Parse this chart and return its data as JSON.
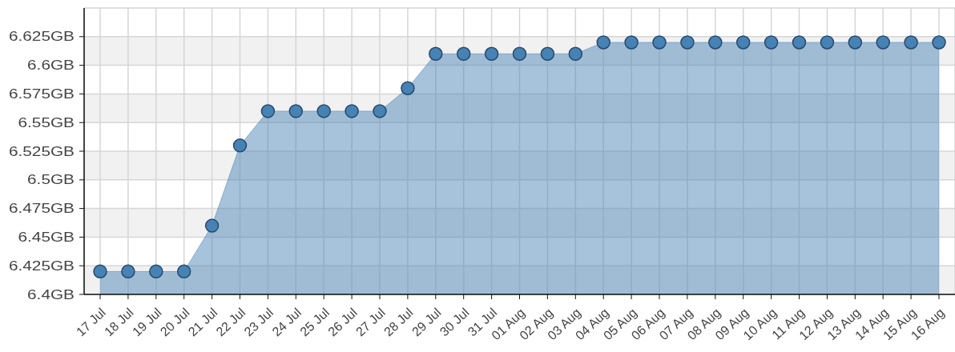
{
  "chart_data": {
    "type": "area",
    "categories": [
      "17 Jul",
      "18 Jul",
      "19 Jul",
      "20 Jul",
      "21 Jul",
      "22 Jul",
      "23 Jul",
      "24 Jul",
      "25 Jul",
      "26 Jul",
      "27 Jul",
      "28 Jul",
      "29 Jul",
      "30 Jul",
      "31 Jul",
      "01 Aug",
      "02 Aug",
      "03 Aug",
      "04 Aug",
      "05 Aug",
      "06 Aug",
      "07 Aug",
      "08 Aug",
      "09 Aug",
      "10 Aug",
      "11 Aug",
      "12 Aug",
      "13 Aug",
      "14 Aug",
      "15 Aug",
      "16 Aug"
    ],
    "values": [
      6.42,
      6.42,
      6.42,
      6.42,
      6.46,
      6.53,
      6.56,
      6.56,
      6.56,
      6.56,
      6.56,
      6.58,
      6.61,
      6.61,
      6.61,
      6.61,
      6.61,
      6.61,
      6.62,
      6.62,
      6.62,
      6.62,
      6.62,
      6.62,
      6.62,
      6.62,
      6.62,
      6.62,
      6.62,
      6.62,
      6.62
    ],
    "color": "#4682b4",
    "ylim": [
      6.4,
      6.65
    ],
    "yticks": [
      {
        "value": 6.4,
        "label": "6.4GB"
      },
      {
        "value": 6.425,
        "label": "6.425GB"
      },
      {
        "value": 6.45,
        "label": "6.45GB"
      },
      {
        "value": 6.475,
        "label": "6.475GB"
      },
      {
        "value": 6.5,
        "label": "6.5GB"
      },
      {
        "value": 6.525,
        "label": "6.525GB"
      },
      {
        "value": 6.55,
        "label": "6.55GB"
      },
      {
        "value": 6.575,
        "label": "6.575GB"
      },
      {
        "value": 6.6,
        "label": "6.6GB"
      },
      {
        "value": 6.625,
        "label": "6.625GB"
      }
    ],
    "grid": true,
    "marker": "circle"
  }
}
